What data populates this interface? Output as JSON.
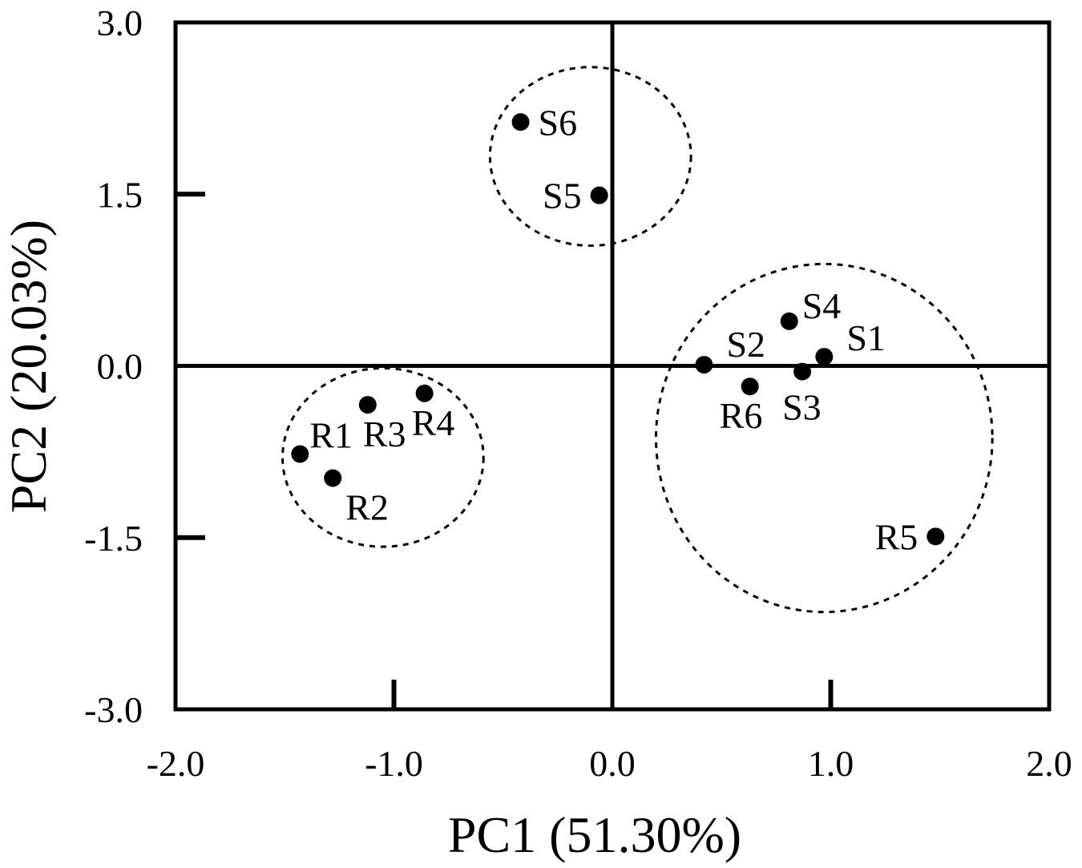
{
  "chart_data": {
    "type": "scatter",
    "xlabel": "PC1 (51.30%)",
    "ylabel": "PC2 (20.03%)",
    "xlim": [
      -2.0,
      2.0
    ],
    "ylim": [
      -3.0,
      3.0
    ],
    "x_ticks": [
      -2.0,
      -1.0,
      0.0,
      1.0,
      2.0
    ],
    "x_tick_labels": [
      "-2.0",
      "-1.0",
      "0.0",
      "1.0",
      "2.0"
    ],
    "y_ticks": [
      3.0,
      1.5,
      0.0,
      -1.5,
      -3.0
    ],
    "y_tick_labels": [
      "3.0",
      "1.5",
      "0.0",
      "-1.5",
      "-3.0"
    ],
    "grid": false,
    "zero_lines": true,
    "points": [
      {
        "label": "S1",
        "x": 0.97,
        "y": 0.08
      },
      {
        "label": "S2",
        "x": 0.42,
        "y": 0.01
      },
      {
        "label": "S3",
        "x": 0.87,
        "y": -0.05
      },
      {
        "label": "S4",
        "x": 0.81,
        "y": 0.39
      },
      {
        "label": "S5",
        "x": -0.06,
        "y": 1.49
      },
      {
        "label": "S6",
        "x": -0.42,
        "y": 2.13
      },
      {
        "label": "R1",
        "x": -1.43,
        "y": -0.77
      },
      {
        "label": "R2",
        "x": -1.28,
        "y": -0.98
      },
      {
        "label": "R3",
        "x": -1.12,
        "y": -0.34
      },
      {
        "label": "R4",
        "x": -0.86,
        "y": -0.24
      },
      {
        "label": "R5",
        "x": 1.48,
        "y": -1.49
      },
      {
        "label": "R6",
        "x": 0.63,
        "y": -0.18
      }
    ],
    "groups": [
      {
        "members": [
          "S5",
          "S6"
        ],
        "center": [
          -0.1,
          1.83
        ],
        "radius_x": 0.46,
        "radius_y": 0.78
      },
      {
        "members": [
          "R1",
          "R2",
          "R3",
          "R4"
        ],
        "center": [
          -1.05,
          -0.8
        ],
        "radius_x": 0.46,
        "radius_y": 0.78
      },
      {
        "members": [
          "S1",
          "S2",
          "S3",
          "S4",
          "R6",
          "R5"
        ],
        "center": [
          0.97,
          -0.63
        ],
        "radius_x": 0.77,
        "radius_y": 1.52
      }
    ],
    "colors": {
      "ink": "#000000",
      "background": "#ffffff"
    }
  }
}
